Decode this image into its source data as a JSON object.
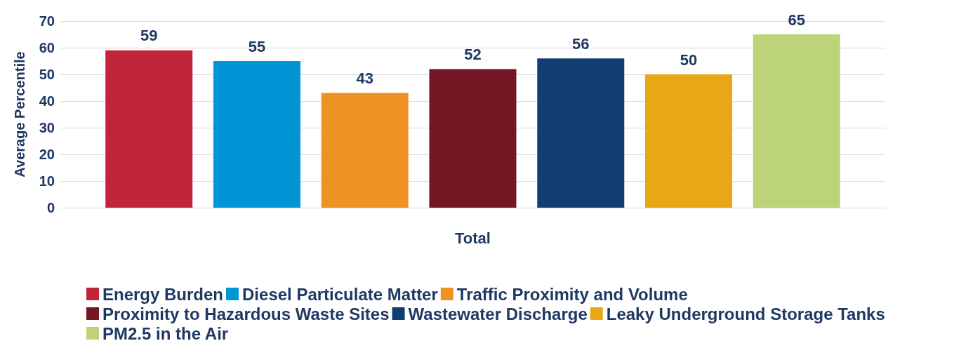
{
  "chart_data": {
    "type": "bar",
    "ylabel": "Average Percentile",
    "categories": [
      "Total"
    ],
    "series": [
      {
        "name": "Energy Burden",
        "color": "#c0253a",
        "values": [
          59
        ]
      },
      {
        "name": "Diesel Particulate Matter",
        "color": "#0096d6",
        "values": [
          55
        ]
      },
      {
        "name": "Traffic Proximity and Volume",
        "color": "#ee9322",
        "values": [
          43
        ]
      },
      {
        "name": "Proximity to Hazardous Waste Sites",
        "color": "#731822",
        "values": [
          52
        ]
      },
      {
        "name": "Wastewater Discharge",
        "color": "#123f72",
        "values": [
          56
        ]
      },
      {
        "name": "Leaky Underground Storage Tanks",
        "color": "#e8a716",
        "values": [
          50
        ]
      },
      {
        "name": "PM2.5 in the Air",
        "color": "#bcd37a",
        "values": [
          65
        ]
      }
    ],
    "ylim": [
      0,
      70
    ],
    "yticks": [
      0,
      10,
      20,
      30,
      40,
      50,
      60,
      70
    ],
    "grid": "y",
    "legend": "bottom",
    "data_labels": true
  }
}
